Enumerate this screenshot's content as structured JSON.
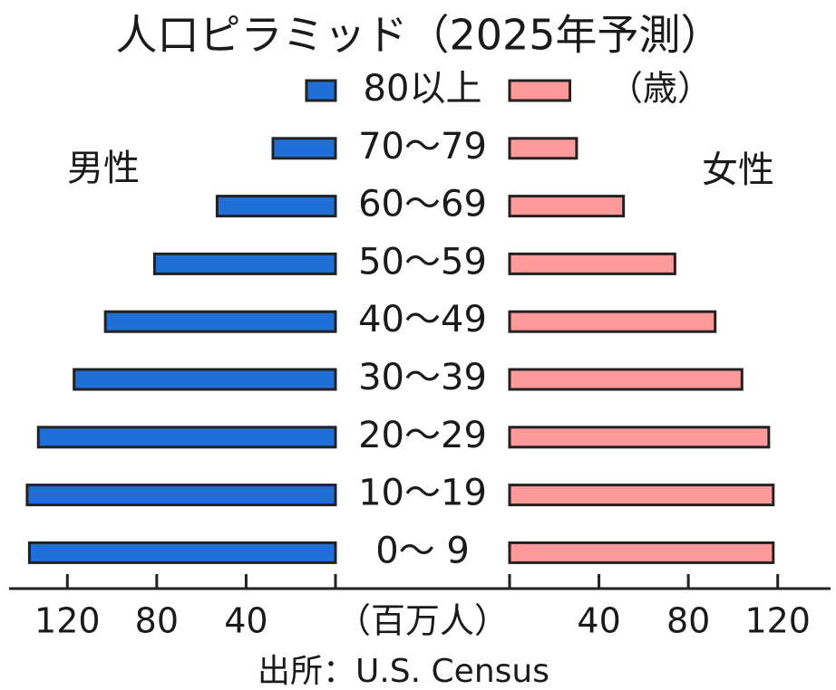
{
  "chart_data": {
    "type": "pyramid",
    "title": "人口ピラミッド（2025年予測）",
    "unit_label": "（歳）",
    "axis_label": "（百万人）",
    "source": "出所：U.S. Census",
    "categories": [
      "80以上",
      "70〜79",
      "60〜69",
      "50〜59",
      "40〜49",
      "30〜39",
      "20〜29",
      "10〜19",
      "0〜 9"
    ],
    "series": [
      {
        "name": "男性",
        "color": "#1f6fd6",
        "values": [
          13,
          28,
          53,
          81,
          103,
          117,
          133,
          138,
          137
        ]
      },
      {
        "name": "女性",
        "color": "#ff9a9a",
        "values": [
          27,
          30,
          51,
          74,
          92,
          104,
          116,
          118,
          118
        ]
      }
    ],
    "xlim": [
      0,
      140
    ],
    "xticks": [
      40,
      80,
      120
    ]
  }
}
